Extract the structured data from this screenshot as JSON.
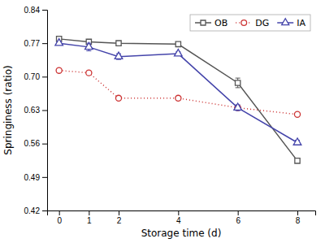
{
  "chart_data": {
    "type": "line",
    "xlabel": "Storage time (d)",
    "ylabel": "Springiness (ratio)",
    "x": [
      0,
      1,
      2,
      4,
      6,
      8
    ],
    "series": [
      {
        "name": "OB",
        "color": "#555555",
        "marker": "square",
        "line_style": "solid",
        "values": [
          0.779,
          0.773,
          0.77,
          0.768,
          0.687,
          0.524
        ],
        "errors": [
          0.005,
          0.004,
          0.003,
          0.003,
          0.01,
          0.004
        ]
      },
      {
        "name": "DG",
        "color": "#cc3333",
        "marker": "circle",
        "line_style": "dotted",
        "values": [
          0.713,
          0.708,
          0.655,
          0.655,
          0.635,
          0.621
        ],
        "errors": [
          0.004,
          0.004,
          0.004,
          0.004,
          0.004,
          0.004
        ]
      },
      {
        "name": "IA",
        "color": "#4444aa",
        "marker": "triangle",
        "line_style": "solid",
        "values": [
          0.77,
          0.762,
          0.742,
          0.748,
          0.635,
          0.562
        ],
        "errors": [
          0.004,
          0.008,
          0.006,
          0.004,
          0.006,
          0.005
        ]
      }
    ],
    "xlim": [
      -0.4,
      8.6
    ],
    "xticks": [
      0,
      1,
      2,
      4,
      6,
      8
    ],
    "ylim": [
      0.42,
      0.84
    ],
    "yticks": [
      0.42,
      0.49,
      0.56,
      0.63,
      {
        "value": 0.7,
        "label": "0.70"
      },
      0.77,
      0.84
    ],
    "grid": false,
    "legend": "upper right"
  }
}
